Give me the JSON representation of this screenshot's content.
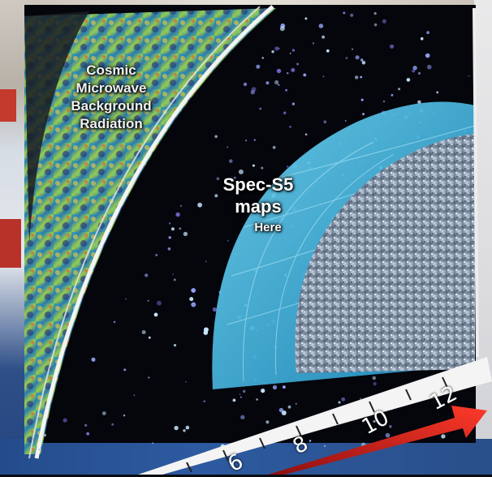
{
  "labels": {
    "cmb": "Cosmic Microwave Background Radiation",
    "spec_title": "Spec-S5 maps",
    "here": "Here"
  },
  "axis": {
    "ticks": [
      "6",
      "8",
      "10",
      "12"
    ]
  },
  "colors": {
    "cmb_band": "#2fa3a0",
    "shell": "#3bb8e0",
    "arrow": "#d61e1e",
    "background": "#04060c"
  }
}
